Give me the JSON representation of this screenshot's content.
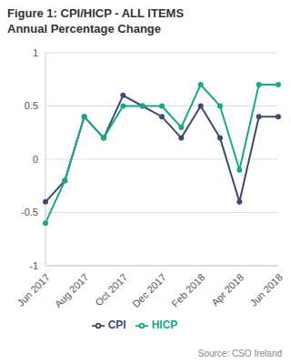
{
  "chart_data": {
    "type": "line",
    "title": "Figure 1: CPI/HICP - ALL ITEMS Annual Percentage Change",
    "source": "Source: CSO Ireland",
    "categories": [
      "Jun 2017",
      null,
      "Aug 2017",
      null,
      "Oct 2017",
      null,
      "Dec 2017",
      null,
      "Feb 2018",
      null,
      "Apr 2018",
      null,
      "Jun 2018"
    ],
    "series": [
      {
        "name": "CPI",
        "color": "#3d4b6e",
        "marker": "circle",
        "values": [
          -0.4,
          -0.2,
          0.4,
          0.2,
          0.6,
          0.5,
          0.4,
          0.2,
          0.5,
          0.2,
          -0.4,
          0.4,
          0.4
        ]
      },
      {
        "name": "HICP",
        "color": "#17a88a",
        "marker": "circle",
        "values": [
          -0.6,
          -0.2,
          0.4,
          0.2,
          0.5,
          0.5,
          0.5,
          0.3,
          0.7,
          0.5,
          -0.1,
          0.7,
          0.7
        ]
      }
    ],
    "ylim": [
      -1,
      1
    ],
    "yticks": [
      -1,
      -0.5,
      0,
      0.5,
      1
    ],
    "grid": true,
    "legend": "bottom"
  }
}
